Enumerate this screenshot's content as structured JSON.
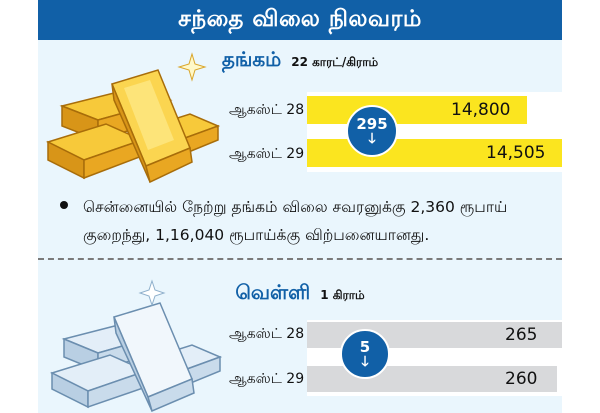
{
  "header": {
    "title": "சந்தை விலை நிலவரம்"
  },
  "gold": {
    "title": "தங்கம்",
    "unit": "22 காரட்/கிராம்",
    "rows": [
      {
        "date": "ஆகஸ்ட் 28",
        "value": "14,800"
      },
      {
        "date": "ஆகஸ்ட் 29",
        "value": "14,505"
      }
    ],
    "drop": "295",
    "arrow": "🡓",
    "bar_color": "#fbe51f",
    "note": "சென்னையில் நேற்று தங்கம் விலை சவரனுக்கு 2,360 ரூபாய் குறைந்து, 1,16,040 ரூபாய்க்கு விற்பனையானது."
  },
  "silver": {
    "title": "வெள்ளி",
    "unit": "1 கிராம்",
    "rows": [
      {
        "date": "ஆகஸ்ட் 28",
        "value": "265"
      },
      {
        "date": "ஆகஸ்ட் 29",
        "value": "260"
      }
    ],
    "drop": "5",
    "arrow": "🡓",
    "bar_color": "#d8d9db"
  },
  "colors": {
    "accent": "#1160a7",
    "panel": "#eaf6fd"
  },
  "icons": {
    "gold": "gold-bars-icon",
    "silver": "silver-bars-icon",
    "down": "down-arrow-icon"
  }
}
